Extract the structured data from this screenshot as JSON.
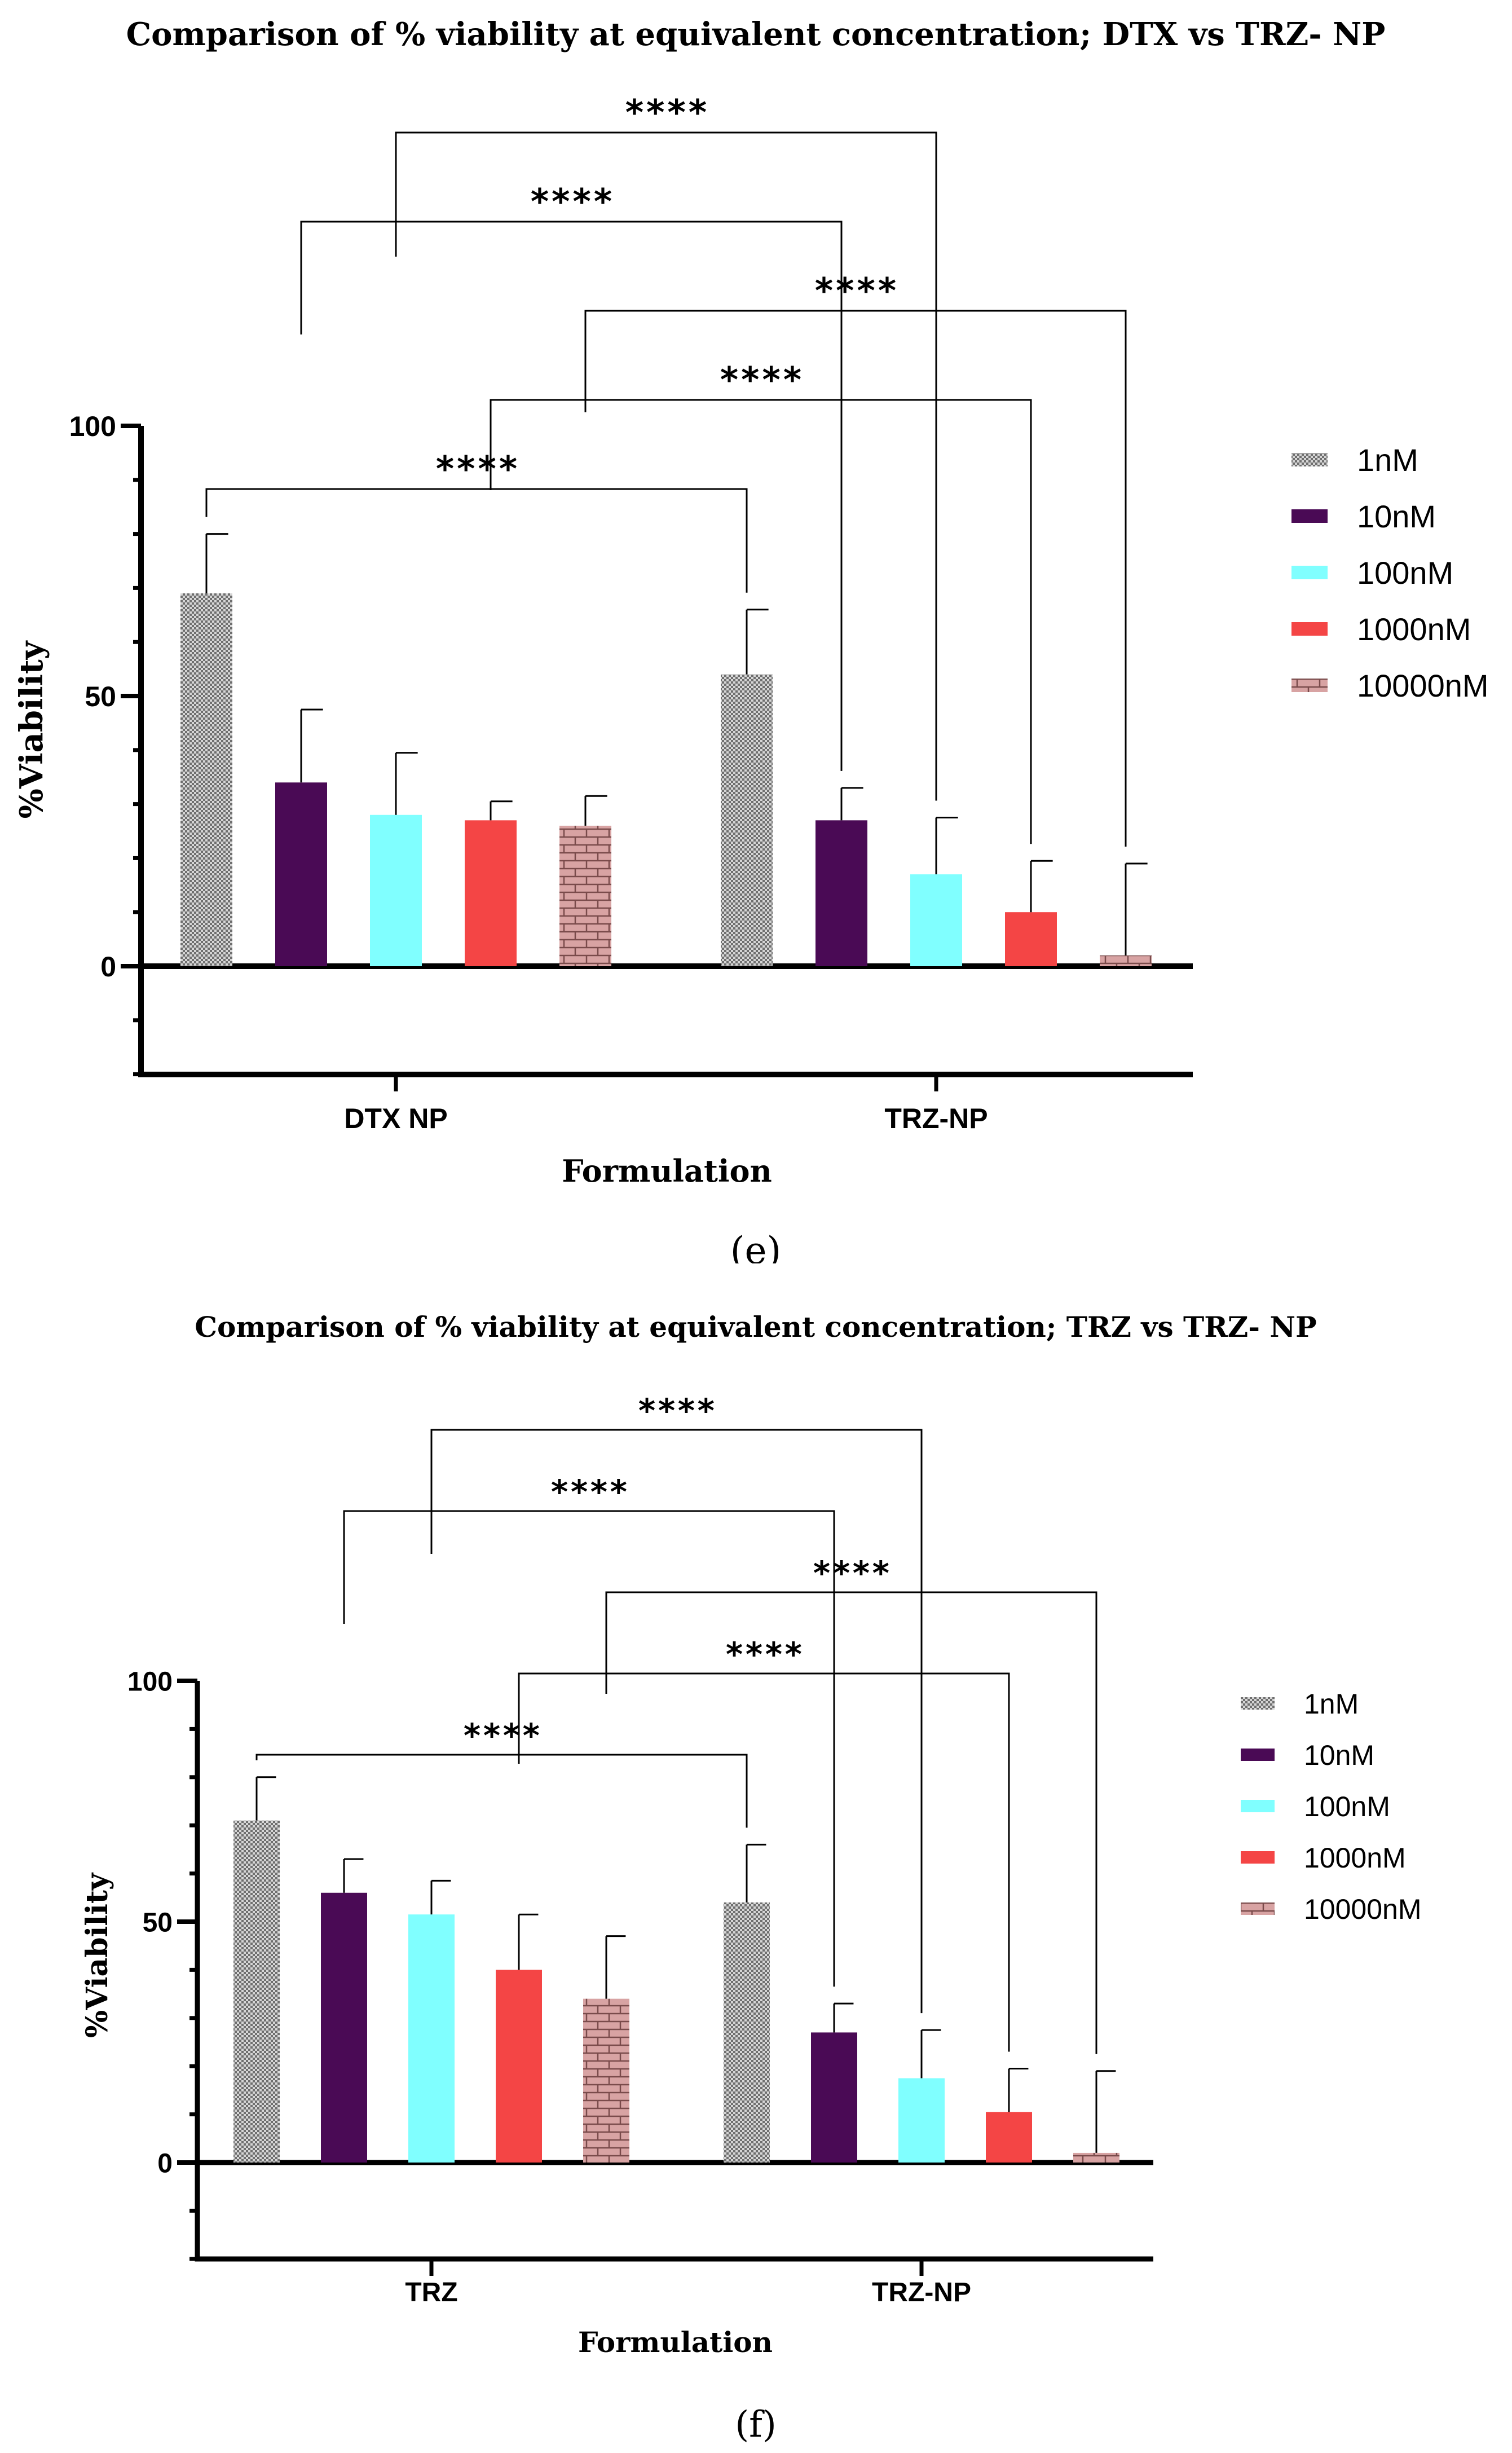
{
  "series_names": [
    "1nM",
    "10nM",
    "100nM",
    "1000nM",
    "10000nM"
  ],
  "series_colors": [
    "checker",
    "#4a0a55",
    "#80ffff",
    "#f44545",
    "brick"
  ],
  "chart_data": [
    {
      "type": "bar",
      "panel_label": "(e)",
      "title": "Comparison of % viability at equivalent concentration; DTX  vs TRZ- NP",
      "xlabel": "Formulation",
      "ylabel": "%Viability",
      "ylim": [
        -20,
        100
      ],
      "yticks": [
        0,
        50,
        100
      ],
      "tick_labels": [
        "0",
        "50",
        "100"
      ],
      "categories": [
        "DTX NP",
        "TRZ-NP"
      ],
      "series": [
        {
          "name": "1nM",
          "values": [
            69,
            54
          ],
          "errors": [
            11,
            12
          ]
        },
        {
          "name": "10nM",
          "values": [
            34,
            27
          ],
          "errors": [
            13.5,
            6
          ]
        },
        {
          "name": "100nM",
          "values": [
            28,
            17
          ],
          "errors": [
            11.5,
            10.5
          ]
        },
        {
          "name": "1000nM",
          "values": [
            27,
            10
          ],
          "errors": [
            3.5,
            9.5
          ]
        },
        {
          "name": "10000nM",
          "values": [
            26,
            2
          ],
          "errors": [
            5.5,
            17
          ]
        }
      ],
      "significance": [
        {
          "label": "****",
          "from": [
            0,
            0
          ],
          "to": [
            1,
            0
          ],
          "level": 1
        },
        {
          "label": "****",
          "from": [
            0,
            3
          ],
          "to": [
            1,
            3
          ],
          "level": 2
        },
        {
          "label": "****",
          "from": [
            0,
            4
          ],
          "to": [
            1,
            4
          ],
          "level": 3
        },
        {
          "label": "****",
          "from": [
            0,
            1
          ],
          "to": [
            1,
            1
          ],
          "level": 4
        },
        {
          "label": "****",
          "from": [
            0,
            2
          ],
          "to": [
            1,
            2
          ],
          "level": 5
        }
      ]
    },
    {
      "type": "bar",
      "panel_label": "(f)",
      "title": "Comparison of % viability at equivalent concentration; TRZ  vs TRZ- NP",
      "xlabel": "Formulation",
      "ylabel": "%Viability",
      "ylim": [
        -20,
        100
      ],
      "yticks": [
        0,
        50,
        100
      ],
      "tick_labels": [
        "0",
        "50",
        "100"
      ],
      "categories": [
        "TRZ",
        "TRZ-NP"
      ],
      "series": [
        {
          "name": "1nM",
          "values": [
            71,
            54
          ],
          "errors": [
            9,
            12
          ]
        },
        {
          "name": "10nM",
          "values": [
            56,
            27
          ],
          "errors": [
            7,
            6
          ]
        },
        {
          "name": "100nM",
          "values": [
            51.5,
            17.5
          ],
          "errors": [
            7,
            10
          ]
        },
        {
          "name": "1000nM",
          "values": [
            40,
            10.5
          ],
          "errors": [
            11.5,
            9
          ]
        },
        {
          "name": "10000nM",
          "values": [
            34,
            2
          ],
          "errors": [
            13,
            17
          ]
        }
      ],
      "significance": [
        {
          "label": "****",
          "from": [
            0,
            0
          ],
          "to": [
            1,
            0
          ],
          "level": 1
        },
        {
          "label": "****",
          "from": [
            0,
            3
          ],
          "to": [
            1,
            3
          ],
          "level": 2
        },
        {
          "label": "****",
          "from": [
            0,
            4
          ],
          "to": [
            1,
            4
          ],
          "level": 3
        },
        {
          "label": "****",
          "from": [
            0,
            1
          ],
          "to": [
            1,
            1
          ],
          "level": 4
        },
        {
          "label": "****",
          "from": [
            0,
            2
          ],
          "to": [
            1,
            2
          ],
          "level": 5
        }
      ]
    }
  ]
}
